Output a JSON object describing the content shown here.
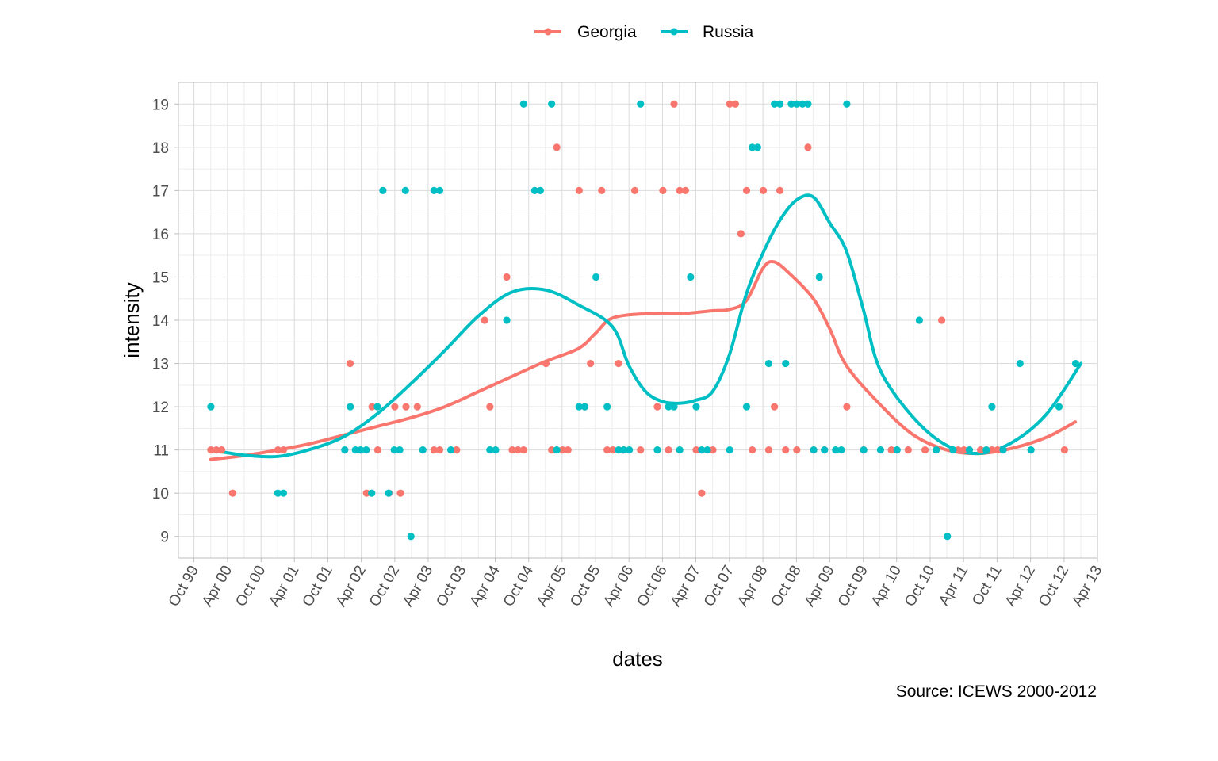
{
  "chart_data": {
    "type": "scatter",
    "title": "",
    "xlabel": "dates",
    "ylabel": "intensity",
    "caption": "Source: ICEWS 2000-2012",
    "x_is_date": true,
    "xlim": [
      "1999-07-08",
      "2013-04-01"
    ],
    "ylim": [
      8.5,
      19.5
    ],
    "x_ticks": [
      {
        "date": "1999-10-01",
        "label": "Oct 99"
      },
      {
        "date": "2000-04-01",
        "label": "Apr 00"
      },
      {
        "date": "2000-10-01",
        "label": "Oct 00"
      },
      {
        "date": "2001-04-01",
        "label": "Apr 01"
      },
      {
        "date": "2001-10-01",
        "label": "Oct 01"
      },
      {
        "date": "2002-04-01",
        "label": "Apr 02"
      },
      {
        "date": "2002-10-01",
        "label": "Oct 02"
      },
      {
        "date": "2003-04-01",
        "label": "Apr 03"
      },
      {
        "date": "2003-10-01",
        "label": "Oct 03"
      },
      {
        "date": "2004-04-01",
        "label": "Apr 04"
      },
      {
        "date": "2004-10-01",
        "label": "Oct 04"
      },
      {
        "date": "2005-04-01",
        "label": "Apr 05"
      },
      {
        "date": "2005-10-01",
        "label": "Oct 05"
      },
      {
        "date": "2006-04-01",
        "label": "Apr 06"
      },
      {
        "date": "2006-10-01",
        "label": "Oct 06"
      },
      {
        "date": "2007-04-01",
        "label": "Apr 07"
      },
      {
        "date": "2007-10-01",
        "label": "Oct 07"
      },
      {
        "date": "2008-04-01",
        "label": "Apr 08"
      },
      {
        "date": "2008-10-01",
        "label": "Oct 08"
      },
      {
        "date": "2009-04-01",
        "label": "Apr 09"
      },
      {
        "date": "2009-10-01",
        "label": "Oct 09"
      },
      {
        "date": "2010-04-01",
        "label": "Apr 10"
      },
      {
        "date": "2010-10-01",
        "label": "Oct 10"
      },
      {
        "date": "2011-04-01",
        "label": "Apr 11"
      },
      {
        "date": "2011-10-01",
        "label": "Oct 11"
      },
      {
        "date": "2012-04-01",
        "label": "Apr 12"
      },
      {
        "date": "2012-10-01",
        "label": "Oct 12"
      },
      {
        "date": "2013-04-01",
        "label": "Apr 13"
      }
    ],
    "y_ticks": [
      9,
      10,
      11,
      12,
      13,
      14,
      15,
      16,
      17,
      18,
      19
    ],
    "grid": true,
    "legend_position": "top",
    "series": [
      {
        "name": "Georgia",
        "color": "#F8766D",
        "points": [
          [
            "2000-01-01",
            11
          ],
          [
            "2000-01-31",
            11
          ],
          [
            "2000-02-29",
            11
          ],
          [
            "2000-04-29",
            10
          ],
          [
            "2001-01-01",
            11
          ],
          [
            "2001-01-31",
            11
          ],
          [
            "2002-01-30",
            13
          ],
          [
            "2002-04-30",
            10
          ],
          [
            "2002-05-30",
            12
          ],
          [
            "2002-06-30",
            11
          ],
          [
            "2002-08-30",
            10
          ],
          [
            "2002-10-01",
            12
          ],
          [
            "2002-11-01",
            10
          ],
          [
            "2002-12-01",
            12
          ],
          [
            "2003-02-01",
            12
          ],
          [
            "2003-05-03",
            11
          ],
          [
            "2003-06-03",
            11
          ],
          [
            "2003-09-03",
            11
          ],
          [
            "2004-02-03",
            14
          ],
          [
            "2004-03-03",
            12
          ],
          [
            "2004-06-03",
            15
          ],
          [
            "2004-07-03",
            11
          ],
          [
            "2004-08-03",
            11
          ],
          [
            "2004-09-03",
            11
          ],
          [
            "2005-01-03",
            13
          ],
          [
            "2005-02-03",
            11
          ],
          [
            "2005-03-03",
            18
          ],
          [
            "2005-04-03",
            11
          ],
          [
            "2005-05-03",
            11
          ],
          [
            "2005-07-03",
            17
          ],
          [
            "2005-08-03",
            12
          ],
          [
            "2005-09-03",
            13
          ],
          [
            "2005-11-03",
            17
          ],
          [
            "2005-12-03",
            11
          ],
          [
            "2006-01-03",
            11
          ],
          [
            "2006-02-03",
            13
          ],
          [
            "2006-03-03",
            11
          ],
          [
            "2006-05-03",
            17
          ],
          [
            "2006-06-03",
            11
          ],
          [
            "2006-09-03",
            12
          ],
          [
            "2006-10-03",
            17
          ],
          [
            "2006-11-03",
            11
          ],
          [
            "2006-12-03",
            19
          ],
          [
            "2007-01-03",
            17
          ],
          [
            "2007-02-03",
            17
          ],
          [
            "2007-04-03",
            11
          ],
          [
            "2007-05-03",
            10
          ],
          [
            "2007-07-03",
            11
          ],
          [
            "2007-10-03",
            19
          ],
          [
            "2007-11-03",
            19
          ],
          [
            "2007-12-03",
            16
          ],
          [
            "2008-01-03",
            17
          ],
          [
            "2008-02-03",
            11
          ],
          [
            "2008-04-03",
            17
          ],
          [
            "2008-05-03",
            11
          ],
          [
            "2008-06-03",
            12
          ],
          [
            "2008-07-03",
            17
          ],
          [
            "2008-08-03",
            11
          ],
          [
            "2008-10-03",
            11
          ],
          [
            "2008-12-03",
            18
          ],
          [
            "2009-01-03",
            11
          ],
          [
            "2009-03-03",
            11
          ],
          [
            "2009-07-03",
            12
          ],
          [
            "2009-10-03",
            11
          ],
          [
            "2010-03-03",
            11
          ],
          [
            "2010-06-03",
            11
          ],
          [
            "2010-09-03",
            11
          ],
          [
            "2010-12-03",
            14
          ],
          [
            "2011-03-03",
            11
          ],
          [
            "2011-04-03",
            11
          ],
          [
            "2011-07-03",
            11
          ],
          [
            "2011-08-03",
            11
          ],
          [
            "2011-09-03",
            11
          ],
          [
            "2011-10-03",
            11
          ],
          [
            "2012-10-03",
            11
          ]
        ],
        "trend": [
          [
            "2000-01-01",
            10.78
          ],
          [
            "2000-07-01",
            10.87
          ],
          [
            "2001-01-01",
            11.0
          ],
          [
            "2001-07-01",
            11.15
          ],
          [
            "2002-01-01",
            11.35
          ],
          [
            "2002-07-01",
            11.55
          ],
          [
            "2003-01-01",
            11.75
          ],
          [
            "2003-07-01",
            12.0
          ],
          [
            "2004-01-01",
            12.35
          ],
          [
            "2004-07-01",
            12.7
          ],
          [
            "2005-01-01",
            13.05
          ],
          [
            "2005-07-01",
            13.35
          ],
          [
            "2005-10-01",
            13.7
          ],
          [
            "2006-01-01",
            14.05
          ],
          [
            "2006-07-01",
            14.15
          ],
          [
            "2007-01-01",
            14.15
          ],
          [
            "2007-07-01",
            14.22
          ],
          [
            "2007-10-01",
            14.25
          ],
          [
            "2008-01-01",
            14.45
          ],
          [
            "2008-04-01",
            15.2
          ],
          [
            "2008-06-01",
            15.35
          ],
          [
            "2008-09-01",
            15.05
          ],
          [
            "2009-01-01",
            14.5
          ],
          [
            "2009-04-01",
            13.8
          ],
          [
            "2009-07-01",
            12.95
          ],
          [
            "2010-01-01",
            12.05
          ],
          [
            "2010-07-01",
            11.35
          ],
          [
            "2011-01-01",
            11.0
          ],
          [
            "2011-07-01",
            10.92
          ],
          [
            "2012-01-01",
            11.05
          ],
          [
            "2012-07-01",
            11.3
          ],
          [
            "2012-12-01",
            11.65
          ]
        ]
      },
      {
        "name": "Russia",
        "color": "#00BFC4",
        "points": [
          [
            "2000-01-01",
            12
          ],
          [
            "2001-01-01",
            10
          ],
          [
            "2001-01-31",
            10
          ],
          [
            "2002-01-01",
            11
          ],
          [
            "2002-01-31",
            12
          ],
          [
            "2002-02-28",
            11
          ],
          [
            "2002-03-28",
            11
          ],
          [
            "2002-04-28",
            11
          ],
          [
            "2002-05-28",
            10
          ],
          [
            "2002-06-28",
            12
          ],
          [
            "2002-07-28",
            17
          ],
          [
            "2002-08-28",
            10
          ],
          [
            "2002-09-28",
            11
          ],
          [
            "2002-10-28",
            11
          ],
          [
            "2002-11-28",
            17
          ],
          [
            "2002-12-28",
            9
          ],
          [
            "2003-03-03",
            11
          ],
          [
            "2003-05-03",
            17
          ],
          [
            "2003-06-03",
            17
          ],
          [
            "2003-08-03",
            11
          ],
          [
            "2004-03-03",
            11
          ],
          [
            "2004-04-03",
            11
          ],
          [
            "2004-06-03",
            14
          ],
          [
            "2004-09-03",
            19
          ],
          [
            "2004-11-03",
            17
          ],
          [
            "2004-12-03",
            17
          ],
          [
            "2005-02-03",
            19
          ],
          [
            "2005-03-03",
            11
          ],
          [
            "2005-07-03",
            12
          ],
          [
            "2005-08-03",
            12
          ],
          [
            "2005-10-03",
            15
          ],
          [
            "2005-12-03",
            12
          ],
          [
            "2006-02-03",
            11
          ],
          [
            "2006-03-03",
            11
          ],
          [
            "2006-04-03",
            11
          ],
          [
            "2006-06-03",
            19
          ],
          [
            "2006-09-03",
            11
          ],
          [
            "2006-11-03",
            12
          ],
          [
            "2006-12-03",
            12
          ],
          [
            "2007-01-03",
            11
          ],
          [
            "2007-03-03",
            15
          ],
          [
            "2007-04-03",
            12
          ],
          [
            "2007-05-03",
            11
          ],
          [
            "2007-06-03",
            11
          ],
          [
            "2007-10-03",
            11
          ],
          [
            "2008-01-03",
            12
          ],
          [
            "2008-02-03",
            18
          ],
          [
            "2008-03-03",
            18
          ],
          [
            "2008-05-03",
            13
          ],
          [
            "2008-06-03",
            19
          ],
          [
            "2008-07-03",
            19
          ],
          [
            "2008-08-03",
            13
          ],
          [
            "2009-01-03",
            11
          ],
          [
            "2009-02-03",
            15
          ],
          [
            "2009-03-03",
            11
          ],
          [
            "2009-05-03",
            11
          ],
          [
            "2009-06-03",
            11
          ],
          [
            "2009-07-03",
            19
          ],
          [
            "2009-10-03",
            11
          ],
          [
            "2010-01-03",
            11
          ],
          [
            "2010-04-03",
            11
          ],
          [
            "2010-08-03",
            14
          ],
          [
            "2010-11-03",
            11
          ],
          [
            "2011-01-03",
            9
          ],
          [
            "2011-02-03",
            11
          ],
          [
            "2011-05-03",
            11
          ],
          [
            "2011-08-03",
            11
          ],
          [
            "2011-09-03",
            12
          ],
          [
            "2011-11-03",
            11
          ],
          [
            "2012-02-03",
            13
          ],
          [
            "2012-04-03",
            11
          ],
          [
            "2012-09-03",
            12
          ],
          [
            "2012-12-03",
            13
          ],
          [
            "2008-09-03",
            19
          ],
          [
            "2008-10-03",
            19
          ],
          [
            "2008-11-03",
            19
          ],
          [
            "2008-12-03",
            19
          ]
        ],
        "trend": [
          [
            "2000-01-01",
            11.0
          ],
          [
            "2000-07-01",
            10.88
          ],
          [
            "2001-01-01",
            10.85
          ],
          [
            "2001-07-01",
            11.02
          ],
          [
            "2002-01-01",
            11.32
          ],
          [
            "2002-07-01",
            11.85
          ],
          [
            "2003-01-01",
            12.55
          ],
          [
            "2003-07-01",
            13.3
          ],
          [
            "2004-01-01",
            14.1
          ],
          [
            "2004-07-01",
            14.65
          ],
          [
            "2005-01-01",
            14.7
          ],
          [
            "2005-07-01",
            14.35
          ],
          [
            "2006-01-01",
            13.85
          ],
          [
            "2006-04-01",
            12.95
          ],
          [
            "2006-07-01",
            12.35
          ],
          [
            "2006-10-01",
            12.12
          ],
          [
            "2007-01-01",
            12.08
          ],
          [
            "2007-04-01",
            12.15
          ],
          [
            "2007-07-01",
            12.35
          ],
          [
            "2007-10-01",
            13.2
          ],
          [
            "2008-01-01",
            14.6
          ],
          [
            "2008-04-01",
            15.55
          ],
          [
            "2008-07-01",
            16.3
          ],
          [
            "2008-10-01",
            16.78
          ],
          [
            "2009-01-01",
            16.85
          ],
          [
            "2009-04-01",
            16.25
          ],
          [
            "2009-07-01",
            15.6
          ],
          [
            "2009-10-01",
            14.25
          ],
          [
            "2010-01-01",
            12.85
          ],
          [
            "2010-07-01",
            11.75
          ],
          [
            "2011-01-01",
            11.1
          ],
          [
            "2011-07-01",
            10.92
          ],
          [
            "2012-01-01",
            11.2
          ],
          [
            "2012-07-01",
            11.85
          ],
          [
            "2013-01-01",
            13.0
          ]
        ]
      }
    ]
  }
}
